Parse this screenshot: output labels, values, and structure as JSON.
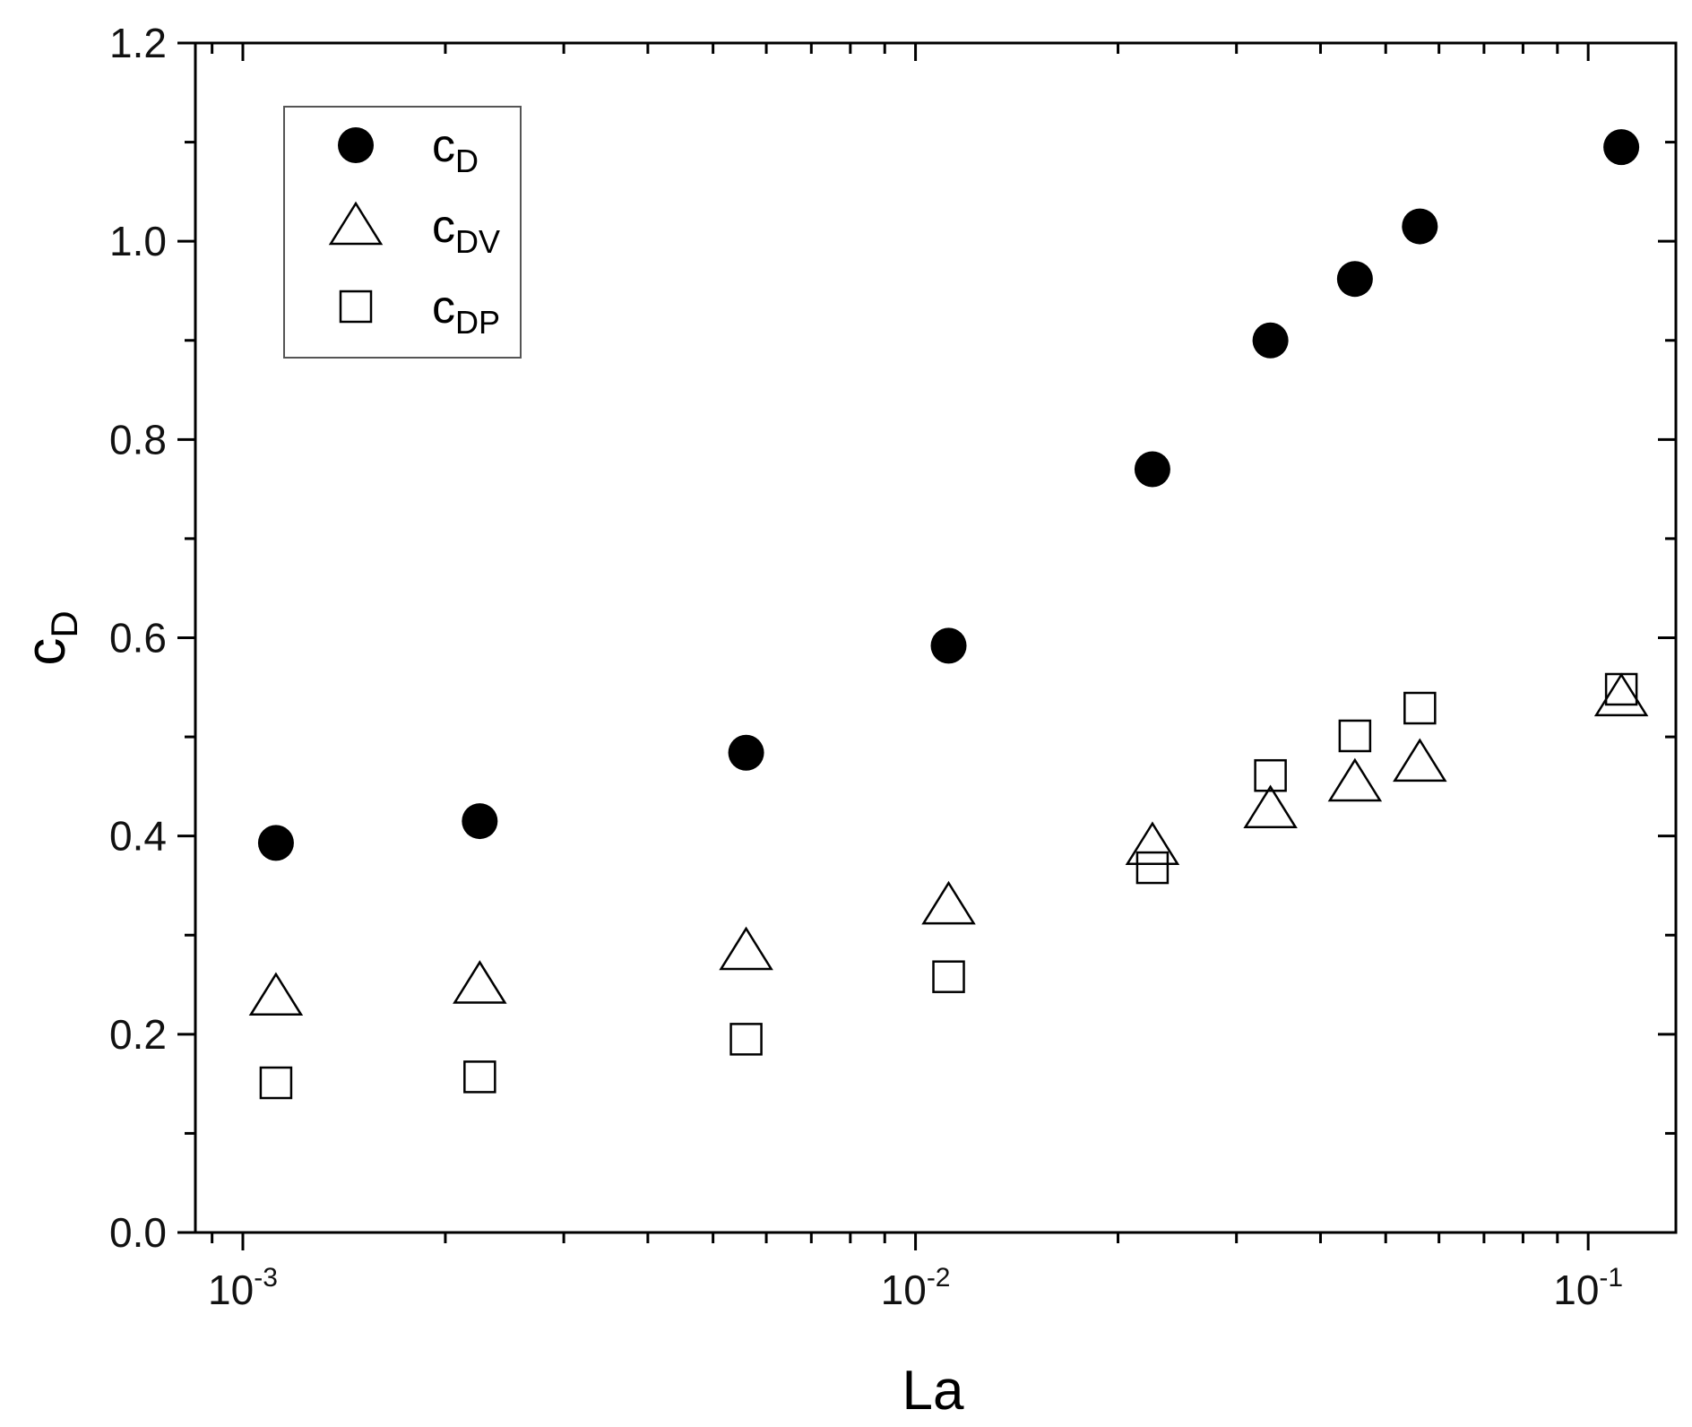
{
  "chart_data": {
    "type": "scatter",
    "xscale": "log",
    "xlim": [
      0.00085,
      0.135
    ],
    "ylim": [
      0.0,
      1.2
    ],
    "xlabel": "La",
    "ylabel": {
      "main": "c",
      "sub": "D"
    },
    "x_ticks": [
      {
        "value": 0.001,
        "base": "10",
        "exp": "-3"
      },
      {
        "value": 0.01,
        "base": "10",
        "exp": "-2"
      },
      {
        "value": 0.1,
        "base": "10",
        "exp": "-1"
      }
    ],
    "y_ticks": [
      "0.0",
      "0.2",
      "0.4",
      "0.6",
      "0.8",
      "1.0",
      "1.2"
    ],
    "legend_position": "top-left",
    "series": [
      {
        "name": {
          "main": "c",
          "sub": "D"
        },
        "marker": "filled-circle",
        "points": [
          [
            0.00112,
            0.393
          ],
          [
            0.00225,
            0.415
          ],
          [
            0.0056,
            0.484
          ],
          [
            0.0112,
            0.592
          ],
          [
            0.0225,
            0.77
          ],
          [
            0.0337,
            0.9
          ],
          [
            0.045,
            0.962
          ],
          [
            0.0562,
            1.015
          ],
          [
            0.112,
            1.095
          ]
        ]
      },
      {
        "name": {
          "main": "c",
          "sub": "DV"
        },
        "marker": "open-triangle",
        "points": [
          [
            0.00112,
            0.238
          ],
          [
            0.00225,
            0.25
          ],
          [
            0.0056,
            0.284
          ],
          [
            0.0112,
            0.33
          ],
          [
            0.0225,
            0.39
          ],
          [
            0.0337,
            0.427
          ],
          [
            0.045,
            0.454
          ],
          [
            0.0562,
            0.474
          ],
          [
            0.112,
            0.54
          ]
        ]
      },
      {
        "name": {
          "main": "c",
          "sub": "DP"
        },
        "marker": "open-square",
        "points": [
          [
            0.00112,
            0.151
          ],
          [
            0.00225,
            0.157
          ],
          [
            0.0056,
            0.195
          ],
          [
            0.0112,
            0.258
          ],
          [
            0.0225,
            0.368
          ],
          [
            0.0337,
            0.461
          ],
          [
            0.045,
            0.501
          ],
          [
            0.0562,
            0.529
          ],
          [
            0.112,
            0.548
          ]
        ]
      }
    ]
  }
}
